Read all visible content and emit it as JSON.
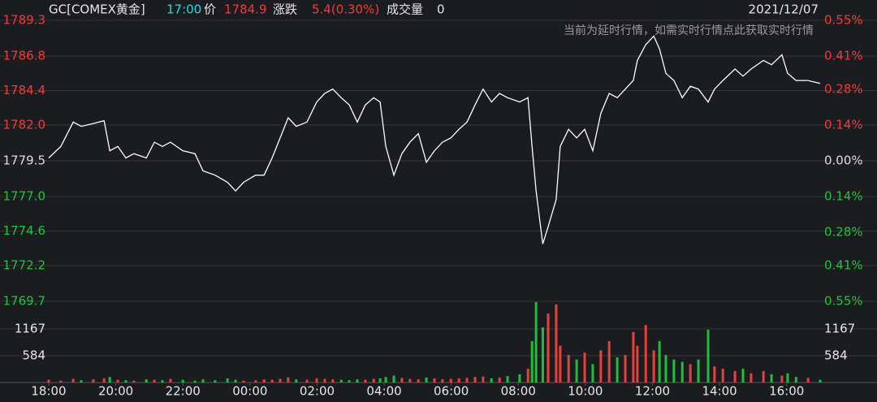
{
  "header": {
    "symbol": "GC[COMEX黄金]",
    "time": "17:00",
    "price_label": "价",
    "price": "1784.9",
    "change_label": "涨跌",
    "change": "5.4(0.30%)",
    "volume_label": "成交量",
    "volume": "0",
    "date": "2021/12/07",
    "notice": "当前为延时行情，如需实时行情点此获取实时行情"
  },
  "chart_data": [
    {
      "type": "line",
      "color": "#ffffff",
      "up_color": "#f23a3a",
      "down_color": "#22c33a",
      "flat_color": "#dddddd",
      "grid": true,
      "x": [
        0,
        0.36,
        0.73,
        0.97,
        1.33,
        1.65,
        1.82,
        2.06,
        2.3,
        2.54,
        2.91,
        3.15,
        3.39,
        3.63,
        4.0,
        4.36,
        4.6,
        4.96,
        5.33,
        5.57,
        5.81,
        6.17,
        6.42,
        6.66,
        6.9,
        7.14,
        7.38,
        7.7,
        7.99,
        8.23,
        8.47,
        8.72,
        8.96,
        9.2,
        9.44,
        9.69,
        9.88,
        10.05,
        10.29,
        10.53,
        10.77,
        11.02,
        11.26,
        11.5,
        11.74,
        11.99,
        12.23,
        12.47,
        12.71,
        12.95,
        13.2,
        13.44,
        13.68,
        14.04,
        14.29,
        14.41,
        14.53,
        14.73,
        14.89,
        15.13,
        15.25,
        15.5,
        15.74,
        15.98,
        16.22,
        16.46,
        16.71,
        16.95,
        17.19,
        17.43,
        17.55,
        17.8,
        18.04,
        18.21,
        18.4,
        18.64,
        18.89,
        19.13,
        19.37,
        19.66,
        19.85,
        20.1,
        20.46,
        20.7,
        20.94,
        21.31,
        21.55,
        21.86,
        22.03,
        22.28,
        22.64,
        23
      ],
      "values": [
        1779.7,
        1780.5,
        1782.2,
        1781.9,
        1782.1,
        1782.3,
        1780.2,
        1780.5,
        1779.7,
        1780.0,
        1779.7,
        1780.8,
        1780.5,
        1780.8,
        1780.2,
        1780.0,
        1778.8,
        1778.5,
        1778.0,
        1777.4,
        1778.0,
        1778.5,
        1778.5,
        1779.7,
        1781.1,
        1782.5,
        1781.9,
        1782.2,
        1783.6,
        1784.2,
        1784.5,
        1783.9,
        1783.4,
        1782.2,
        1783.4,
        1783.9,
        1783.6,
        1780.5,
        1778.5,
        1780.0,
        1780.8,
        1781.4,
        1779.4,
        1780.2,
        1780.8,
        1781.1,
        1781.7,
        1782.2,
        1783.4,
        1784.5,
        1783.6,
        1784.2,
        1783.9,
        1783.6,
        1783.9,
        1780.5,
        1777.4,
        1773.7,
        1774.9,
        1776.8,
        1780.5,
        1781.7,
        1781.1,
        1781.7,
        1780.2,
        1782.8,
        1784.2,
        1783.9,
        1784.5,
        1785.1,
        1786.5,
        1787.6,
        1788.2,
        1787.3,
        1785.6,
        1785.1,
        1783.9,
        1784.7,
        1784.5,
        1783.6,
        1784.5,
        1785.1,
        1785.9,
        1785.4,
        1785.9,
        1786.5,
        1786.2,
        1786.9,
        1785.6,
        1785.1,
        1785.1,
        1784.9
      ],
      "xlim": [
        0,
        23
      ],
      "ylim": [
        1769.7,
        1789.3
      ],
      "base": 1779.5,
      "yticks": [
        1789.3,
        1786.8,
        1784.4,
        {
          "value": 1782,
          "label": "1782.0"
        },
        1779.5,
        {
          "value": 1777,
          "label": "1777.0"
        },
        1774.6,
        1772.2,
        1769.7
      ],
      "y2lim": [
        -0.55,
        0.55
      ],
      "y2ticks": [
        {
          "value": 0.55,
          "label": "0.55%"
        },
        {
          "value": 0.41,
          "label": "0.41%"
        },
        {
          "value": 0.28,
          "label": "0.28%"
        },
        {
          "value": 0.14,
          "label": "0.14%"
        },
        {
          "value": 0,
          "label": "0.00%"
        },
        {
          "value": -0.14,
          "label": "0.14%"
        },
        {
          "value": -0.28,
          "label": "0.28%"
        },
        {
          "value": -0.41,
          "label": "0.41%"
        },
        {
          "value": -0.55,
          "label": "0.55%"
        }
      ]
    },
    {
      "type": "bar",
      "up_color": "#e8413b",
      "down_color": "#1fbf38",
      "grid": true,
      "values": [
        60,
        40,
        80,
        50,
        70,
        90,
        120,
        60,
        50,
        40,
        70,
        60,
        50,
        80,
        60,
        40,
        70,
        50,
        90,
        60,
        40,
        50,
        70,
        60,
        80,
        110,
        70,
        60,
        90,
        80,
        70,
        60,
        50,
        70,
        60,
        80,
        90,
        120,
        150,
        100,
        80,
        70,
        110,
        90,
        70,
        80,
        90,
        100,
        120,
        130,
        90,
        110,
        140,
        180,
        300,
        900,
        1750,
        1200,
        1500,
        1700,
        800,
        600,
        500,
        650,
        400,
        700,
        900,
        550,
        600,
        1100,
        800,
        1250,
        700,
        900,
        600,
        500,
        450,
        400,
        500,
        1150,
        350,
        300,
        250,
        300,
        200,
        250,
        180,
        150,
        200,
        120,
        100,
        60
      ],
      "ylim": [
        0,
        1750
      ],
      "yticks": [
        1167,
        584
      ],
      "xlim": [
        0,
        23
      ],
      "xticks": [
        {
          "value": 0,
          "label": "18:00"
        },
        {
          "value": 2,
          "label": "20:00"
        },
        {
          "value": 4,
          "label": "22:00"
        },
        {
          "value": 6,
          "label": "00:00"
        },
        {
          "value": 8,
          "label": "02:00"
        },
        {
          "value": 10,
          "label": "04:00"
        },
        {
          "value": 12,
          "label": "06:00"
        },
        {
          "value": 14,
          "label": "08:00"
        },
        {
          "value": 16,
          "label": "10:00"
        },
        {
          "value": 18,
          "label": "12:00"
        },
        {
          "value": 20,
          "label": "14:00"
        },
        {
          "value": 22,
          "label": "16:00"
        }
      ]
    }
  ]
}
